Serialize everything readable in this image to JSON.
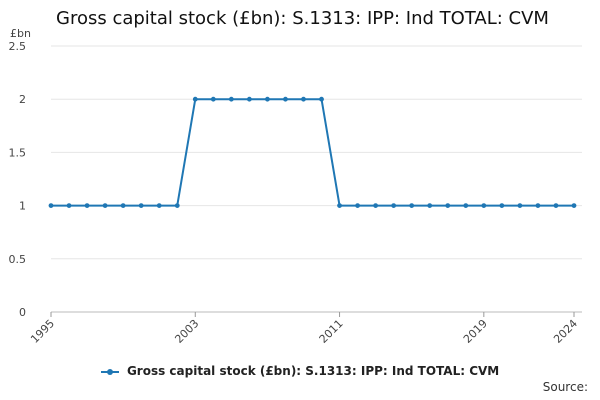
{
  "chart_data": {
    "type": "line",
    "title": "Gross capital stock (£bn): S.1313: IPP: Ind TOTAL: CVM",
    "ylabel": "£bn",
    "xlabel": "",
    "ylim": [
      0,
      2.5
    ],
    "yticks": [
      "0",
      "0.5",
      "1",
      "1.5",
      "2",
      "2.5"
    ],
    "xlim": [
      1995,
      2024
    ],
    "xticks": [
      "1995",
      "2003",
      "2011",
      "2019",
      "2024"
    ],
    "grid": true,
    "legend_position": "bottom",
    "series": [
      {
        "name": "Gross capital stock (£bn): S.1313: IPP: Ind TOTAL: CVM",
        "color": "#1f77b4",
        "x": [
          1995,
          1996,
          1997,
          1998,
          1999,
          2000,
          2001,
          2002,
          2003,
          2004,
          2005,
          2006,
          2007,
          2008,
          2009,
          2010,
          2011,
          2012,
          2013,
          2014,
          2015,
          2016,
          2017,
          2018,
          2019,
          2020,
          2021,
          2022,
          2023,
          2024
        ],
        "values": [
          1,
          1,
          1,
          1,
          1,
          1,
          1,
          1,
          2,
          2,
          2,
          2,
          2,
          2,
          2,
          2,
          1,
          1,
          1,
          1,
          1,
          1,
          1,
          1,
          1,
          1,
          1,
          1,
          1,
          1
        ]
      }
    ]
  },
  "footer": {
    "source_label": "Source:"
  }
}
